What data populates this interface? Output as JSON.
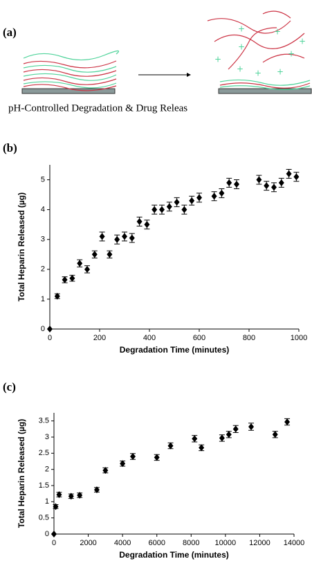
{
  "figure": {
    "panel_a": {
      "label": "(a)",
      "caption": "pH-Controlled Degradation & Drug Releas"
    }
  },
  "chart_data": [
    {
      "type": "scatter",
      "label": "(b)",
      "x_label": "Degradation Time (minutes)",
      "y_label": "Total Heparin Released (µg)",
      "color": "#000000",
      "x": [
        0,
        30,
        60,
        90,
        120,
        150,
        180,
        210,
        240,
        270,
        300,
        330,
        360,
        390,
        420,
        450,
        480,
        510,
        540,
        570,
        600,
        660,
        690,
        720,
        750,
        840,
        870,
        900,
        930,
        960,
        990
      ],
      "values": [
        0,
        1.1,
        1.65,
        1.7,
        2.2,
        2.0,
        2.5,
        3.1,
        2.5,
        3.0,
        3.1,
        3.05,
        3.6,
        3.5,
        4.0,
        4.0,
        4.1,
        4.25,
        4.0,
        4.3,
        4.4,
        4.45,
        4.55,
        4.9,
        4.85,
        5.0,
        4.8,
        4.75,
        4.9,
        5.2,
        5.1
      ],
      "errors": [
        0,
        0.08,
        0.1,
        0.1,
        0.12,
        0.12,
        0.12,
        0.15,
        0.12,
        0.15,
        0.15,
        0.15,
        0.15,
        0.15,
        0.15,
        0.15,
        0.15,
        0.15,
        0.15,
        0.15,
        0.15,
        0.15,
        0.15,
        0.15,
        0.15,
        0.15,
        0.15,
        0.15,
        0.15,
        0.15,
        0.15
      ],
      "xlim": [
        0,
        1000
      ],
      "ylim": [
        0,
        5.5
      ],
      "xticks": [
        0,
        200,
        400,
        600,
        800,
        1000
      ],
      "yticks": [
        0,
        1,
        2,
        3,
        4,
        5
      ]
    },
    {
      "type": "scatter",
      "label": "(c)",
      "x_label": "Degradation Time (minutes)",
      "y_label": "Total Heparin Released (µg)",
      "color": "#000000",
      "x": [
        0,
        100,
        300,
        1000,
        1500,
        2500,
        3000,
        4000,
        4600,
        6000,
        6800,
        8200,
        8600,
        9800,
        10200,
        10600,
        11500,
        12900,
        13600
      ],
      "values": [
        0,
        0.85,
        1.22,
        1.17,
        1.2,
        1.37,
        1.97,
        2.18,
        2.4,
        2.37,
        2.73,
        2.95,
        2.67,
        2.97,
        3.08,
        3.25,
        3.32,
        3.08,
        3.47
      ],
      "errors": [
        0,
        0.06,
        0.07,
        0.07,
        0.07,
        0.07,
        0.08,
        0.08,
        0.09,
        0.09,
        0.09,
        0.1,
        0.09,
        0.1,
        0.1,
        0.11,
        0.11,
        0.1,
        0.1
      ],
      "xlim": [
        0,
        14000
      ],
      "ylim": [
        0,
        3.75
      ],
      "xticks": [
        0,
        2000,
        4000,
        6000,
        8000,
        10000,
        12000,
        14000
      ],
      "yticks": [
        0,
        0.5,
        1,
        1.5,
        2,
        2.5,
        3,
        3.5
      ]
    }
  ]
}
